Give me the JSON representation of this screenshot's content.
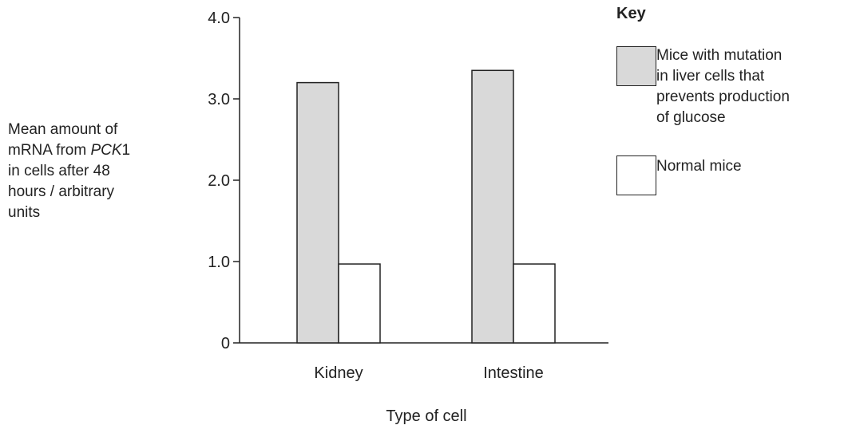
{
  "chart_data": {
    "type": "bar",
    "categories": [
      "Kidney",
      "Intestine"
    ],
    "series": [
      {
        "name": "Mice with mutation in liver cells that prevents production of glucose",
        "values": [
          3.2,
          3.35
        ],
        "color": "#d9d9d9"
      },
      {
        "name": "Normal mice",
        "values": [
          0.97,
          0.97
        ],
        "color": "#ffffff"
      }
    ],
    "ylim": [
      0,
      4.0
    ],
    "yticks": [
      "0",
      "1.0",
      "2.0",
      "3.0",
      "4.0"
    ],
    "xlabel": "Type of cell",
    "ylabel_lines": [
      "Mean amount of",
      "mRNA from ",
      "in cells after 48",
      "hours / arbitrary",
      "units"
    ],
    "ylabel_italic": "PCK",
    "ylabel_suffix": "1",
    "legend_title": "Key",
    "legend": [
      {
        "lines": [
          "Mice with mutation",
          "in liver cells that",
          "prevents production",
          "of glucose"
        ],
        "color": "#d9d9d9"
      },
      {
        "lines": [
          "Normal mice"
        ],
        "color": "#ffffff"
      }
    ],
    "grid": false,
    "legend_position": "top-right"
  }
}
